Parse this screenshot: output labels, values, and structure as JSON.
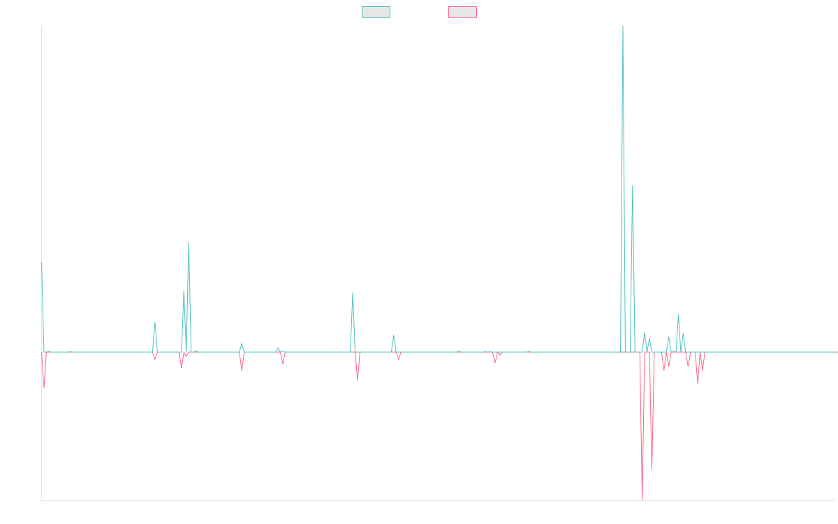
{
  "chart_data": {
    "type": "line",
    "title": "",
    "xlabel": "",
    "ylabel": "",
    "grid": false,
    "legend": {
      "position": "top-center"
    },
    "ylim": [
      -1,
      1
    ],
    "series": [
      {
        "name": "",
        "color": "#4bc0c0",
        "fill": "#e6e6e6",
        "values": [
          0.38,
          0,
          0,
          0.003,
          0,
          0,
          0,
          0,
          0,
          0,
          0,
          0,
          0.002,
          0,
          0,
          0,
          0,
          0,
          0,
          0,
          0,
          0,
          0,
          0,
          0,
          0,
          0,
          0,
          0,
          0,
          0,
          0,
          0,
          0,
          0,
          0,
          0,
          0,
          0,
          0,
          0,
          0,
          0,
          0,
          0,
          0,
          0,
          0.127,
          0,
          0,
          0,
          0,
          0,
          0,
          0,
          0,
          0,
          0,
          0,
          0.262,
          0,
          0.467,
          0,
          0,
          0.004,
          0,
          0,
          0,
          0,
          0,
          0,
          0,
          0,
          0,
          0,
          0,
          0,
          0,
          0,
          0,
          0,
          0,
          0,
          0.036,
          0,
          0,
          0,
          0,
          0,
          0,
          0,
          0,
          0,
          0,
          0,
          0,
          0,
          0,
          0.018,
          0,
          0.004,
          0,
          0,
          0,
          0,
          0,
          0,
          0,
          0,
          0,
          0,
          0,
          0,
          0,
          0,
          0,
          0,
          0,
          0,
          0,
          0,
          0,
          0,
          0,
          0,
          0,
          0,
          0,
          0,
          0.253,
          0,
          0,
          0,
          0,
          0,
          0,
          0,
          0,
          0,
          0,
          0,
          0,
          0,
          0,
          0,
          0,
          0.072,
          0,
          0,
          0,
          0,
          0,
          0,
          0,
          0,
          0,
          0,
          0,
          0,
          0,
          0,
          0,
          0,
          0,
          0,
          0,
          0,
          0,
          0,
          0,
          0,
          0,
          0,
          0.003,
          0,
          0,
          0,
          0,
          0,
          0,
          0,
          0,
          0,
          0,
          0.002,
          0,
          0.002,
          0,
          0,
          0,
          0,
          0,
          0,
          0,
          0,
          0,
          0,
          0,
          0,
          0,
          0,
          0,
          0.003,
          0,
          0,
          0,
          0,
          0,
          0,
          0,
          0,
          0,
          0,
          0,
          0,
          0,
          0,
          0,
          0,
          0,
          0,
          0,
          0,
          0,
          0,
          0,
          0,
          0,
          0,
          0,
          0,
          0,
          0,
          0,
          0,
          0,
          0,
          0,
          0,
          0,
          0,
          1.38,
          0,
          0,
          0,
          0.705,
          0,
          0,
          0,
          0,
          0.082,
          0,
          0.058,
          0,
          0,
          0,
          0,
          0,
          0,
          0,
          0.065,
          0,
          0.002,
          0,
          0.158,
          0,
          0.08,
          0,
          0,
          0,
          0,
          0,
          0,
          0,
          0,
          0,
          0,
          0,
          0,
          0,
          0,
          0,
          0,
          0,
          0,
          0,
          0,
          0,
          0,
          0,
          0,
          0,
          0,
          0,
          0,
          0,
          0,
          0,
          0,
          0,
          0,
          0,
          0,
          0,
          0,
          0,
          0,
          0,
          0,
          0,
          0,
          0,
          0,
          0,
          0,
          0,
          0,
          0,
          0,
          0,
          0,
          0,
          0,
          0,
          0,
          0,
          0,
          0,
          0,
          0
        ]
      },
      {
        "name": "",
        "color": "#ff6384",
        "fill": "#e6e6e6",
        "values": [
          0,
          -0.15,
          0,
          0,
          0,
          0,
          0,
          0,
          0,
          0,
          0,
          0,
          0,
          0,
          0,
          0,
          0,
          0,
          0,
          0,
          0,
          0,
          0,
          0,
          0,
          0,
          0,
          0,
          0,
          0,
          0,
          0,
          0,
          0,
          0,
          0,
          0,
          0,
          0,
          0,
          0,
          0,
          0,
          0,
          0,
          0,
          0,
          -0.03,
          0,
          0,
          0,
          0,
          0,
          0,
          0,
          0,
          0,
          0,
          -0.067,
          0,
          -0.018,
          0,
          0,
          0,
          0,
          0,
          0,
          0,
          0,
          0,
          0,
          0,
          0,
          0,
          0,
          0,
          0,
          0,
          0,
          0,
          0,
          0,
          0,
          -0.077,
          0,
          0,
          0,
          0,
          0,
          0,
          0,
          0,
          0,
          0,
          0,
          0,
          0,
          0,
          0,
          0,
          -0.05,
          0,
          0,
          0,
          0,
          0,
          0,
          0,
          0,
          0,
          0,
          0,
          0,
          0,
          0,
          0,
          0,
          0,
          0,
          0,
          0,
          0,
          0,
          0,
          0,
          0,
          0,
          0,
          0,
          0,
          0,
          -0.117,
          0,
          0,
          0,
          0,
          0,
          0,
          0,
          0,
          0,
          0,
          0,
          0,
          0,
          0,
          0,
          0,
          -0.03,
          0,
          0,
          0,
          0,
          0,
          0,
          0,
          0,
          0,
          0,
          0,
          0,
          0,
          0,
          0,
          0,
          0,
          0,
          0,
          0,
          0,
          0,
          0,
          0,
          0,
          0,
          0,
          0,
          0,
          0,
          0,
          0,
          0,
          0,
          0,
          0,
          0,
          0,
          0,
          -0.045,
          0,
          -0.012,
          0,
          0,
          0,
          0,
          0,
          0,
          0,
          0,
          0,
          0,
          0,
          0,
          0,
          0,
          0,
          0,
          0,
          0,
          0,
          0,
          0,
          0,
          0,
          0,
          0,
          0,
          0,
          0,
          0,
          0,
          0,
          0,
          0,
          0,
          0,
          0,
          0,
          0,
          0,
          0,
          0,
          0,
          0,
          0,
          0,
          0,
          0,
          0,
          0,
          0,
          0,
          0,
          0,
          0,
          0,
          0,
          0,
          0,
          -0.62,
          0,
          0,
          0,
          -0.49,
          0,
          0,
          0,
          0,
          -0.077,
          0,
          -0.06,
          0,
          0,
          0,
          0,
          0,
          0,
          0,
          -0.06,
          0,
          0,
          0,
          -0.133,
          0,
          -0.077,
          0,
          0,
          0,
          0,
          0,
          0,
          0,
          0,
          0,
          0,
          0,
          0,
          0,
          0,
          0,
          0,
          0,
          0,
          0,
          0,
          0,
          0,
          0,
          0,
          0,
          0,
          0,
          0,
          0,
          0,
          0,
          0,
          0,
          0,
          0,
          0,
          0,
          0,
          0,
          0,
          0,
          0,
          0,
          0,
          0,
          0,
          0,
          0,
          0,
          0,
          0,
          0,
          0,
          0,
          0,
          0,
          0,
          0,
          0,
          0,
          0,
          0,
          0,
          0
        ]
      }
    ]
  }
}
